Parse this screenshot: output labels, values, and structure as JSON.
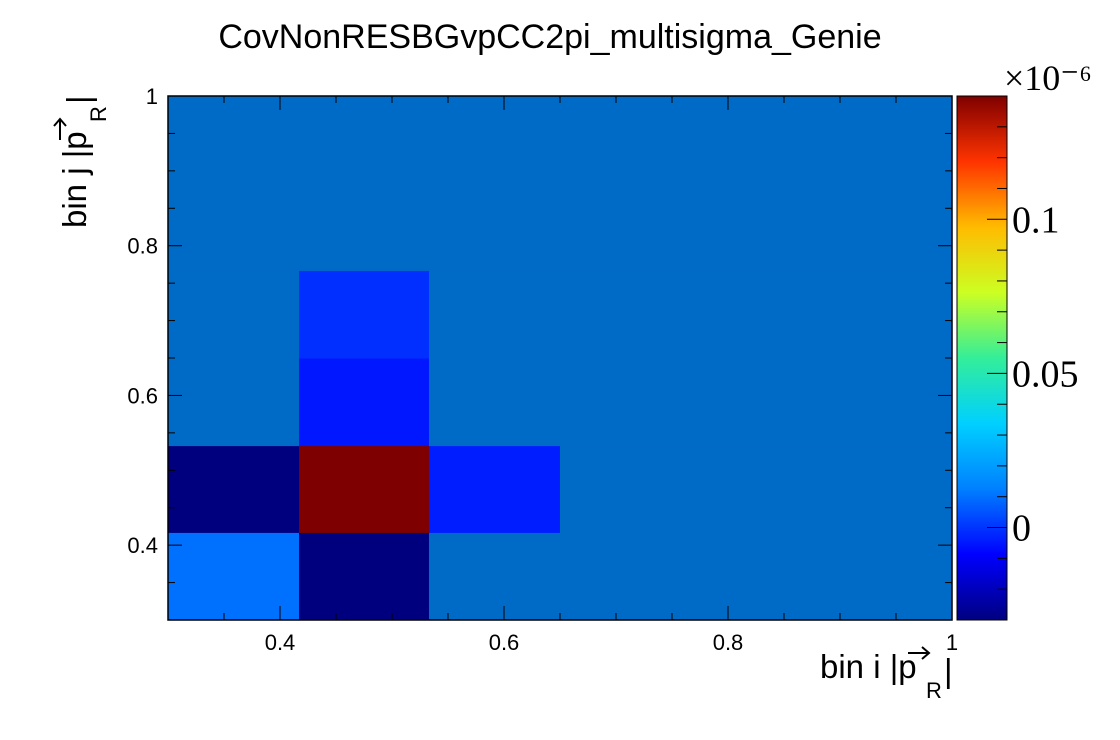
{
  "chart_data": {
    "type": "heatmap",
    "title": "CovNonRESBGvpCC2pi_multisigma_Genie",
    "xlabel": "bin i |p_R|",
    "ylabel": "bin j |p_R|",
    "x_edges": [
      0.3,
      0.417,
      0.533,
      0.65,
      1.0
    ],
    "y_edges": [
      0.3,
      0.417,
      0.533,
      0.65,
      0.767,
      1.0
    ],
    "xlim": [
      0.3,
      1.0
    ],
    "ylim": [
      0.3,
      1.0
    ],
    "x_ticks": [
      "0.4",
      "0.6",
      "0.8",
      "1"
    ],
    "y_ticks": [
      "0.4",
      "0.6",
      "0.8",
      "1"
    ],
    "z_scale": "×10⁻⁶",
    "zlim": [
      -0.03,
      0.14
    ],
    "z_ticks": [
      "0",
      "0.05",
      "0.1"
    ],
    "cells": [
      {
        "x": 0,
        "y": 0,
        "z": 0.01
      },
      {
        "x": 1,
        "y": 0,
        "z": -0.03
      },
      {
        "x": 2,
        "y": 0,
        "z": 0.0
      },
      {
        "x": 3,
        "y": 0,
        "z": 0.0
      },
      {
        "x": 0,
        "y": 1,
        "z": -0.03
      },
      {
        "x": 1,
        "y": 1,
        "z": 0.14
      },
      {
        "x": 2,
        "y": 1,
        "z": -0.004
      },
      {
        "x": 3,
        "y": 1,
        "z": 0.0
      },
      {
        "x": 0,
        "y": 2,
        "z": 0.0
      },
      {
        "x": 1,
        "y": 2,
        "z": -0.005
      },
      {
        "x": 2,
        "y": 2,
        "z": 0.0
      },
      {
        "x": 3,
        "y": 2,
        "z": 0.0
      },
      {
        "x": 0,
        "y": 3,
        "z": 0.0
      },
      {
        "x": 1,
        "y": 3,
        "z": -0.001
      },
      {
        "x": 2,
        "y": 3,
        "z": 0.0
      },
      {
        "x": 3,
        "y": 3,
        "z": 0.0
      },
      {
        "x": 0,
        "y": 4,
        "z": 0.0
      },
      {
        "x": 1,
        "y": 4,
        "z": 0.0
      },
      {
        "x": 2,
        "y": 4,
        "z": 0.0
      },
      {
        "x": 3,
        "y": 4,
        "z": 0.0
      }
    ],
    "colormap": [
      "#00007f",
      "#0000ff",
      "#0080ff",
      "#00d0ff",
      "#33ee99",
      "#ccff22",
      "#ffbb00",
      "#ff3300",
      "#7f0000"
    ],
    "grid": false,
    "legend": "colorbar-right"
  }
}
